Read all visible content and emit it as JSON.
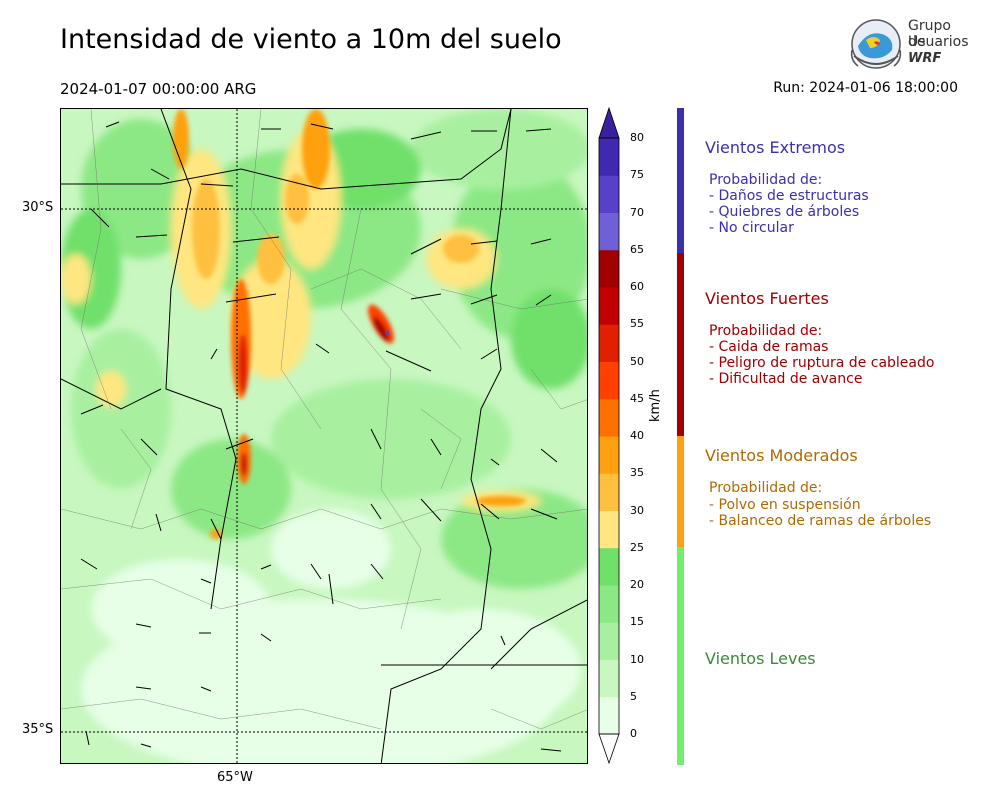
{
  "header": {
    "title": "Intensidad de viento a 10m del suelo",
    "valid_time": "2024-01-07 00:00:00 ARG",
    "run": "Run: 2024-01-06 18:00:00"
  },
  "logo": {
    "line1": "Grupo de",
    "line2": "Usuarios",
    "line3": "WRF"
  },
  "map": {
    "lat_labels": [
      "30°S",
      "35°S"
    ],
    "lon_labels": [
      "65°W"
    ]
  },
  "colorbar": {
    "units": "km/h",
    "ticks": [
      "0",
      "5",
      "10",
      "15",
      "20",
      "25",
      "30",
      "35",
      "40",
      "45",
      "50",
      "55",
      "60",
      "65",
      "70",
      "75",
      "80"
    ],
    "colors": [
      "#e6ffe6",
      "#c8f7c0",
      "#a8f0a0",
      "#8ce884",
      "#6fe06a",
      "#ffe680",
      "#ffc040",
      "#ffa010",
      "#ff7000",
      "#ff4000",
      "#e02000",
      "#c00000",
      "#a00000",
      "#7060d8",
      "#5840c8",
      "#4028b0"
    ],
    "extend_color": "#3a1fa0"
  },
  "categories": [
    {
      "title": "Vientos Extremos",
      "color": "#3a2fb0",
      "bar_color": "#3a2fb0",
      "subtitle": "Probabilidad de:",
      "items": [
        "- Daños de estructuras",
        "- Quiebres de árboles",
        "- No circular"
      ]
    },
    {
      "title": "Vientos Fuertes",
      "color": "#a00000",
      "bar_color": "#a00000",
      "subtitle": "Probabilidad de:",
      "items": [
        "- Caida de ramas",
        "- Peligro de ruptura de cableado",
        "- Dificultad de avance"
      ]
    },
    {
      "title": "Vientos Moderados",
      "color": "#b06a00",
      "bar_color": "#ffa010",
      "subtitle": "Probabilidad de:",
      "items": [
        "- Polvo en suspensión",
        "- Balanceo de ramas de árboles"
      ]
    },
    {
      "title": "Vientos Leves",
      "color": "#3a8a3a",
      "bar_color": "#6fef6a"
    }
  ]
}
